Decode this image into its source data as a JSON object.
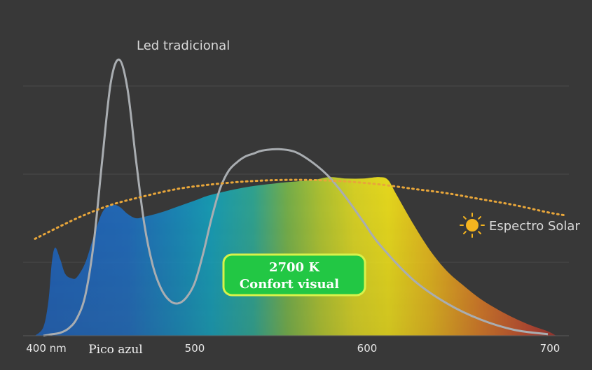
{
  "chart_data": {
    "type": "area",
    "xlim": [
      395,
      710
    ],
    "ylim": [
      0,
      100
    ],
    "grid": true,
    "x_ticks": [
      {
        "value": 400,
        "label": "400 nm"
      },
      {
        "value": 500,
        "label": "500"
      },
      {
        "value": 600,
        "label": "600"
      },
      {
        "value": 700,
        "label": "700"
      }
    ],
    "annotation_tick": {
      "value": 440,
      "label": "Pico azul"
    },
    "series": [
      {
        "name": "Espectro Solar",
        "style": "dotted",
        "color": "#e8a63a",
        "x": [
          395,
          420,
          440,
          460,
          480,
          500,
          520,
          540,
          560,
          580,
          600,
          620,
          640,
          660,
          680,
          700,
          710
        ],
        "y": [
          33,
          40,
          44.5,
          47.5,
          50,
          51.5,
          52.5,
          53,
          53,
          52.5,
          51.5,
          50,
          48.5,
          46.5,
          44.5,
          42,
          41
        ]
      },
      {
        "name": "Led tradicional",
        "style": "line",
        "color": "#a9adb1",
        "x": [
          400,
          405,
          410,
          415,
          420,
          425,
          430,
          435,
          440,
          445,
          450,
          455,
          460,
          465,
          470,
          475,
          480,
          485,
          490,
          495,
          500,
          505,
          510,
          515,
          520,
          525,
          530,
          540,
          550,
          560,
          570,
          580,
          590,
          600,
          620,
          640,
          660,
          680,
          700
        ],
        "y": [
          0,
          0.5,
          1,
          2.5,
          6,
          14,
          32,
          60,
          86,
          94,
          84,
          60,
          38,
          24,
          16,
          12,
          11,
          13,
          18,
          28,
          40,
          50,
          56,
          59,
          61,
          62,
          63,
          63.5,
          62.5,
          59,
          54,
          47,
          39,
          31,
          19,
          11,
          5.5,
          2,
          0.5
        ]
      },
      {
        "name": "2700 K",
        "style": "gradient-area",
        "x": [
          395,
          400,
          403,
          405,
          407,
          410,
          413,
          417,
          420,
          425,
          430,
          435,
          440,
          445,
          450,
          455,
          460,
          470,
          480,
          490,
          500,
          520,
          540,
          560,
          570,
          580,
          590,
          600,
          605,
          610,
          620,
          630,
          640,
          650,
          660,
          670,
          680,
          690,
          700,
          705
        ],
        "y": [
          0,
          3,
          12,
          25,
          30,
          26,
          21,
          19.5,
          20,
          25,
          34,
          42,
          44.5,
          44,
          41.5,
          40,
          40.5,
          42,
          44,
          46,
          48,
          50.5,
          52,
          53,
          54,
          53.5,
          53.5,
          54,
          53,
          48,
          38,
          29,
          22,
          17,
          12.5,
          9,
          6,
          3.5,
          1.5,
          0
        ]
      }
    ],
    "gradient_stops": [
      {
        "wl": 395,
        "color": "#1d64c2"
      },
      {
        "wl": 450,
        "color": "#1e6fc6"
      },
      {
        "wl": 480,
        "color": "#1590c4"
      },
      {
        "wl": 500,
        "color": "#13a7c2"
      },
      {
        "wl": 525,
        "color": "#2fb09a"
      },
      {
        "wl": 545,
        "color": "#7cbd4c"
      },
      {
        "wl": 565,
        "color": "#bcd230"
      },
      {
        "wl": 585,
        "color": "#eae322"
      },
      {
        "wl": 605,
        "color": "#fbec19"
      },
      {
        "wl": 630,
        "color": "#f4c21a"
      },
      {
        "wl": 660,
        "color": "#e57f24"
      },
      {
        "wl": 690,
        "color": "#c7472e"
      },
      {
        "wl": 705,
        "color": "#a8322c"
      }
    ],
    "badge": {
      "line1": "2700 K",
      "line2": "Confort visual",
      "fill": "#22c744",
      "border": "#d8f24a"
    }
  },
  "icons": {
    "sun": "sun-icon"
  },
  "colors": {
    "background": "#383838",
    "grid": "#4a4a4a",
    "sun": "#f4b41f"
  }
}
